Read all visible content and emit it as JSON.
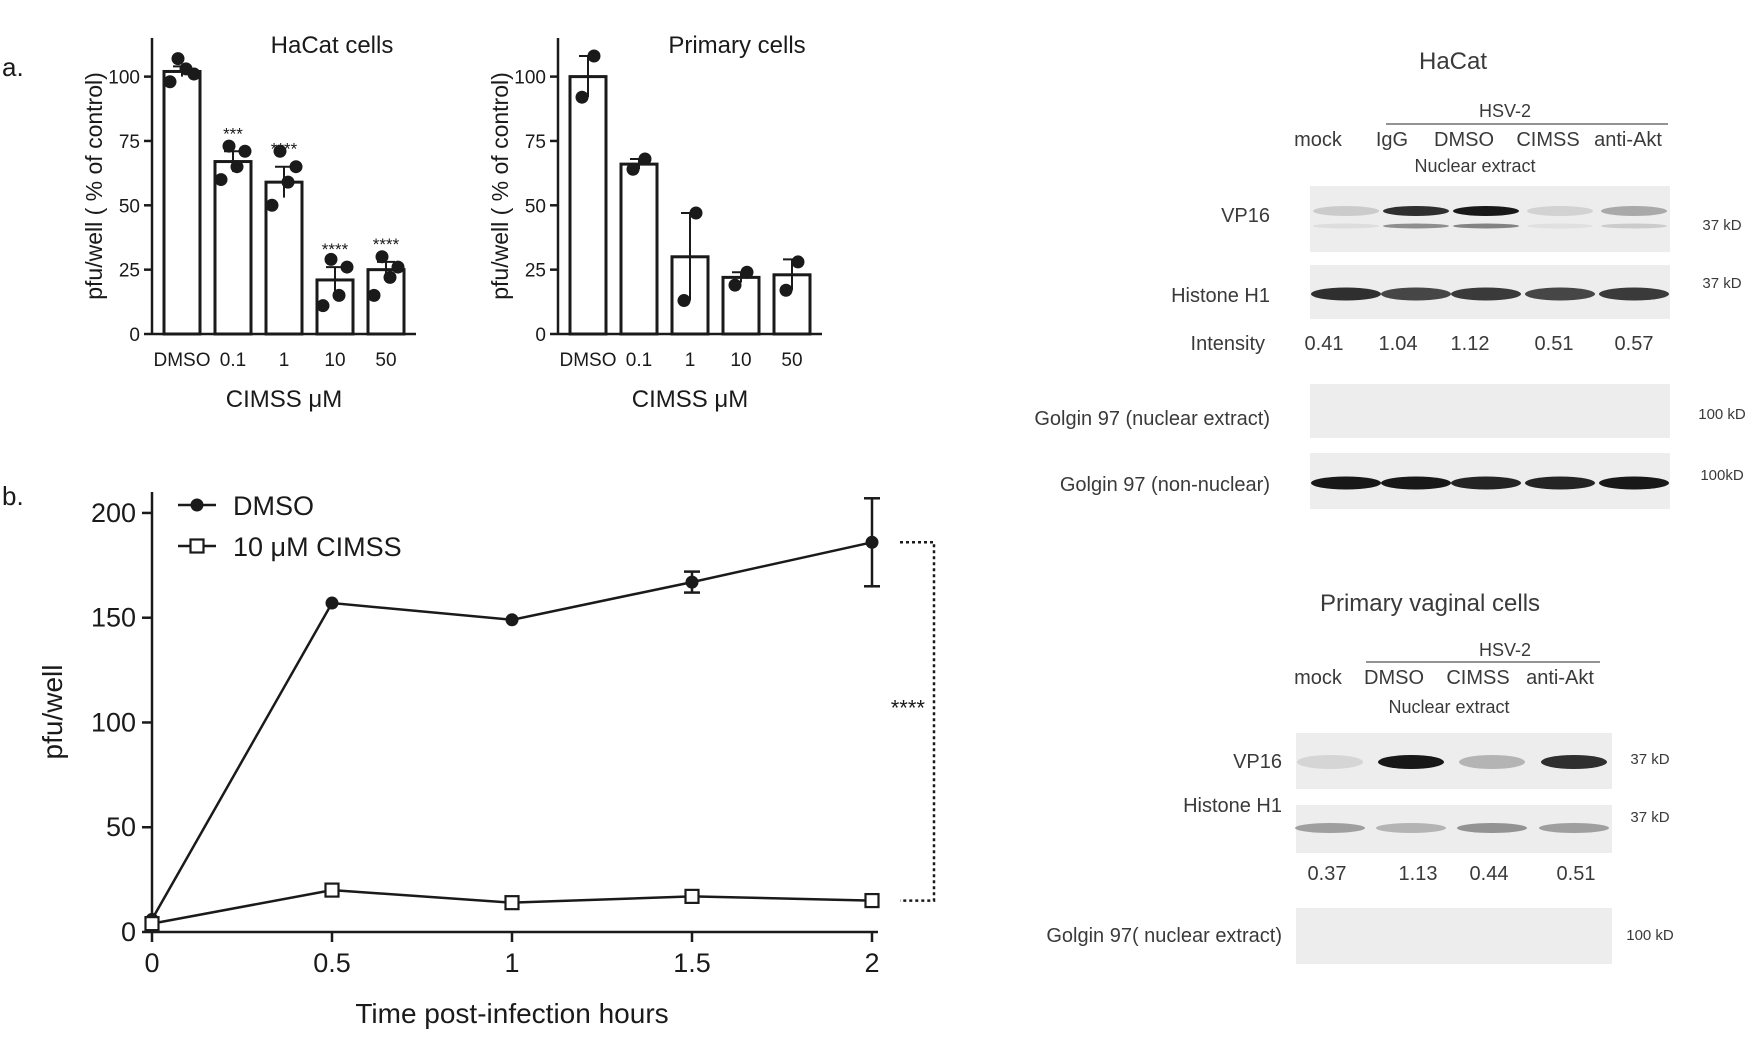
{
  "panel_labels": {
    "a": "a.",
    "b": "b."
  },
  "chart_data": [
    {
      "id": "hacat-bar",
      "type": "bar",
      "title": "HaCat cells",
      "xlabel": "CIMSS μM",
      "ylabel": "pfu/well ( % of control)",
      "categories": [
        "DMSO",
        "0.1",
        "1",
        "10",
        "50"
      ],
      "values": [
        102,
        67,
        59,
        21,
        25
      ],
      "error": [
        2,
        4,
        6,
        5,
        3
      ],
      "points": [
        [
          98,
          103,
          101,
          107
        ],
        [
          60,
          65,
          71,
          73
        ],
        [
          50,
          59,
          65,
          71
        ],
        [
          11,
          15,
          26,
          29
        ],
        [
          15,
          22,
          26,
          30
        ]
      ],
      "significance": [
        "",
        "***",
        "****",
        "****",
        "****"
      ],
      "ylim": [
        0,
        115
      ],
      "yticks": [
        0,
        25,
        50,
        75,
        100
      ]
    },
    {
      "id": "primary-bar",
      "type": "bar",
      "title": "Primary cells",
      "xlabel": "CIMSS μM",
      "ylabel": "pfu/well ( % of control)",
      "categories": [
        "DMSO",
        "0.1",
        "1",
        "10",
        "50"
      ],
      "values": [
        100,
        66,
        30,
        22,
        23
      ],
      "error": [
        8,
        2,
        17,
        2,
        6
      ],
      "points": [
        [
          92,
          108
        ],
        [
          64,
          68
        ],
        [
          13,
          47
        ],
        [
          19,
          24
        ],
        [
          17,
          28
        ]
      ],
      "significance": [
        "",
        "",
        "",
        "",
        ""
      ],
      "ylim": [
        0,
        115
      ],
      "yticks": [
        0,
        25,
        50,
        75,
        100
      ]
    },
    {
      "id": "time-line",
      "type": "line",
      "title": "",
      "xlabel": "Time post-infection hours",
      "ylabel": "pfu/well",
      "x": [
        0,
        0.5,
        1,
        1.5,
        2
      ],
      "xtick_labels": [
        "0",
        "0.5",
        "1",
        "1.5",
        "2"
      ],
      "xlim": [
        0,
        2
      ],
      "ylim": [
        0,
        210
      ],
      "yticks": [
        0,
        50,
        100,
        150,
        200
      ],
      "series": [
        {
          "name": "DMSO",
          "marker": "filled-circle",
          "values": [
            6,
            157,
            149,
            167,
            186
          ],
          "error": [
            0,
            0,
            0,
            5,
            21
          ]
        },
        {
          "name": "10 μM CIMSS",
          "marker": "open-square",
          "values": [
            4,
            20,
            14,
            17,
            15
          ],
          "error": [
            0,
            0,
            0,
            0,
            0
          ]
        }
      ],
      "significance": "****",
      "legend": "top-left"
    }
  ],
  "blots": {
    "hacat": {
      "title": "HaCat",
      "group_label": "HSV-2",
      "lanes": [
        "mock",
        "IgG",
        "DMSO",
        "CIMSS",
        "anti-Akt"
      ],
      "extract_label": "Nuclear extract",
      "rows": [
        {
          "label": "VP16",
          "size": "37 kD"
        },
        {
          "label": "Histone H1",
          "size": "37 kD"
        },
        {
          "label": "Golgin 97 (nuclear extract)",
          "size": "100 kD"
        },
        {
          "label": "Golgin 97 (non-nuclear)",
          "size": "100kD"
        }
      ],
      "intensity_label": "Intensity",
      "intensities": [
        "0.41",
        "1.04",
        "1.12",
        "0.51",
        "0.57"
      ],
      "vp16_band": [
        0.15,
        0.85,
        0.95,
        0.12,
        0.3
      ],
      "h1_band": [
        0.85,
        0.75,
        0.8,
        0.75,
        0.8
      ],
      "golgin_nuc_band": [
        0,
        0,
        0,
        0,
        0
      ],
      "golgin_non_band": [
        0.95,
        0.95,
        0.9,
        0.9,
        0.95
      ]
    },
    "primary": {
      "title": "Primary vaginal cells",
      "group_label": "HSV-2",
      "lanes": [
        "mock",
        "DMSO",
        "CIMSS",
        "anti-Akt"
      ],
      "extract_label": "Nuclear extract",
      "rows": [
        {
          "label": "VP16",
          "size": "37 kD"
        },
        {
          "label": "Histone H1",
          "size": "37 kD"
        },
        {
          "label": "Golgin 97( nuclear extract)",
          "size": "100 kD"
        }
      ],
      "intensities": [
        "0.37",
        "1.13",
        "0.44",
        "0.51"
      ],
      "vp16_band": [
        0.1,
        0.95,
        0.25,
        0.85
      ],
      "h1_band": [
        0.35,
        0.25,
        0.4,
        0.35
      ],
      "golgin_nuc_band": [
        0,
        0,
        0,
        0
      ]
    }
  }
}
